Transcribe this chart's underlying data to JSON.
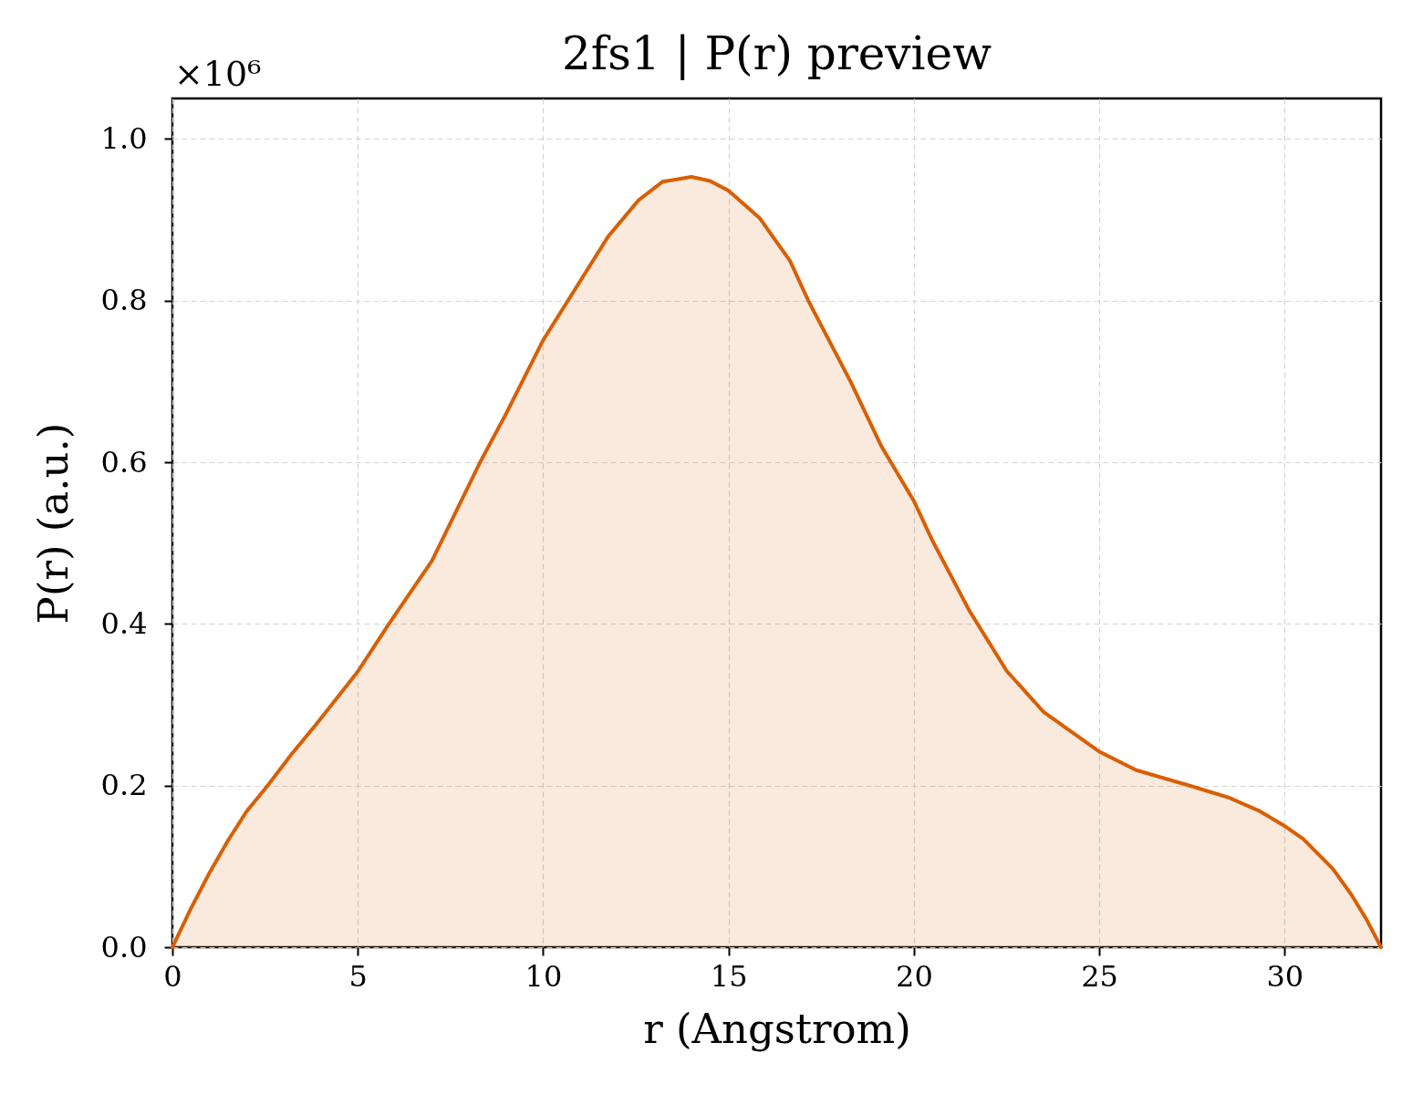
{
  "chart_data": {
    "type": "area",
    "title": "2fs1 | P(r) preview",
    "xlabel": "r (Angstrom)",
    "ylabel": "P(r) (a.u.)",
    "annotations": [
      "×10⁶"
    ],
    "x": [
      0,
      0.5,
      1,
      1.5,
      2,
      2.57,
      3.2,
      3.9,
      5,
      5.84,
      7,
      8.3,
      9,
      10,
      10.93,
      11.75,
      12.57,
      13.22,
      14,
      14.5,
      15,
      15.84,
      16.66,
      17.15,
      18.3,
      19.12,
      20,
      20.5,
      21.5,
      22.5,
      23.5,
      25,
      26,
      27.5,
      28.5,
      29.3,
      30,
      30.5,
      31.3,
      31.8,
      32.2,
      32.6
    ],
    "series": [
      {
        "color": "#d95f02",
        "values": [
          0,
          0.048,
          0.092,
          0.132,
          0.168,
          0.2,
          0.238,
          0.277,
          0.341,
          0.4,
          0.478,
          0.6,
          0.66,
          0.751,
          0.819,
          0.879,
          0.924,
          0.947,
          0.953,
          0.948,
          0.936,
          0.902,
          0.849,
          0.8,
          0.699,
          0.62,
          0.552,
          0.503,
          0.416,
          0.342,
          0.291,
          0.242,
          0.219,
          0.199,
          0.185,
          0.169,
          0.15,
          0.134,
          0.097,
          0.065,
          0.035,
          0
        ]
      }
    ],
    "xlim": [
      0,
      32.6
    ],
    "ylim": [
      0,
      1.05
    ],
    "xticks": [
      0,
      5,
      10,
      15,
      20,
      25,
      30
    ],
    "yticks": [
      {
        "value": 0,
        "label": "0.0"
      },
      {
        "value": 0.2,
        "label": "0.2"
      },
      {
        "value": 0.4,
        "label": "0.4"
      },
      {
        "value": 0.6,
        "label": "0.6"
      },
      {
        "value": 0.8,
        "label": "0.8"
      },
      {
        "value": 1.0,
        "label": "1.0"
      }
    ],
    "grid": true,
    "line_style": "solid"
  }
}
